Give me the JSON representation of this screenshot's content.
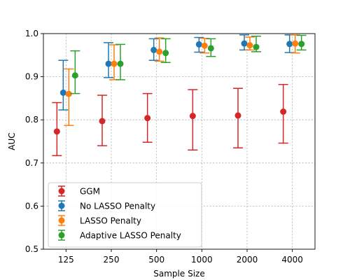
{
  "chart_data": {
    "type": "scatter",
    "xlabel": "Sample Size",
    "ylabel": "AUC",
    "ylim": [
      0.5,
      1.0
    ],
    "yticks": [
      "0.5",
      "0.6",
      "0.7",
      "0.8",
      "0.9",
      "1.0"
    ],
    "categories": [
      "125",
      "250",
      "500",
      "1000",
      "2000",
      "4000"
    ],
    "grid": true,
    "legend_position": "lower-left",
    "series": [
      {
        "name": "GGM",
        "color": "#d62728",
        "values": [
          0.773,
          0.797,
          0.804,
          0.809,
          0.81,
          0.819
        ],
        "lower": [
          0.717,
          0.74,
          0.748,
          0.73,
          0.735,
          0.746
        ],
        "upper": [
          0.84,
          0.857,
          0.861,
          0.87,
          0.873,
          0.882
        ]
      },
      {
        "name": "No LASSO Penalty",
        "color": "#1f77b4",
        "values": [
          0.863,
          0.93,
          0.962,
          0.975,
          0.977,
          0.976
        ],
        "lower": [
          0.823,
          0.898,
          0.938,
          0.957,
          0.962,
          0.956
        ],
        "upper": [
          0.938,
          0.979,
          0.988,
          0.991,
          0.997,
          0.997
        ]
      },
      {
        "name": "LASSO Penalty",
        "color": "#ff7f0e",
        "values": [
          0.86,
          0.93,
          0.958,
          0.972,
          0.973,
          0.977
        ],
        "lower": [
          0.787,
          0.893,
          0.936,
          0.955,
          0.962,
          0.955
        ],
        "upper": [
          0.918,
          0.974,
          0.99,
          0.989,
          0.992,
          0.997
        ]
      },
      {
        "name": "Adaptive LASSO Penalty",
        "color": "#2ca02c",
        "values": [
          0.903,
          0.93,
          0.955,
          0.966,
          0.969,
          0.976
        ],
        "lower": [
          0.861,
          0.893,
          0.933,
          0.947,
          0.958,
          0.962
        ],
        "upper": [
          0.96,
          0.975,
          0.988,
          0.988,
          0.994,
          0.996
        ]
      }
    ]
  }
}
